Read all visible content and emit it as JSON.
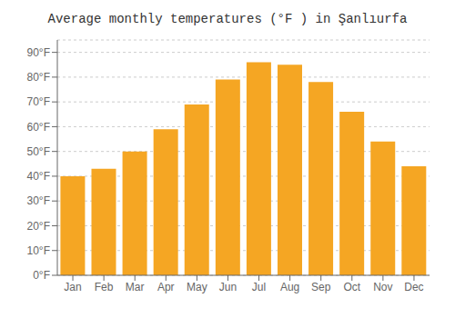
{
  "chart_data": {
    "type": "bar",
    "title": "Average monthly temperatures (°F ) in Şanlıurfa",
    "categories": [
      "Jan",
      "Feb",
      "Mar",
      "Apr",
      "May",
      "Jun",
      "Jul",
      "Aug",
      "Sep",
      "Oct",
      "Nov",
      "Dec"
    ],
    "values": [
      40,
      43,
      50,
      59,
      69,
      79,
      86,
      85,
      78,
      66,
      54,
      44
    ],
    "color": "#F5A623",
    "ylim": [
      0,
      95
    ],
    "yticks": [
      {
        "value": 0,
        "label": "0°F"
      },
      {
        "value": 10,
        "label": "10°F"
      },
      {
        "value": 20,
        "label": "20°F"
      },
      {
        "value": 30,
        "label": "30°F"
      },
      {
        "value": 40,
        "label": "40°F"
      },
      {
        "value": 50,
        "label": "50°F"
      },
      {
        "value": 60,
        "label": "60°F"
      },
      {
        "value": 70,
        "label": "70°F"
      },
      {
        "value": 80,
        "label": "80°F"
      },
      {
        "value": 90,
        "label": "90°F"
      }
    ],
    "grid": true
  }
}
